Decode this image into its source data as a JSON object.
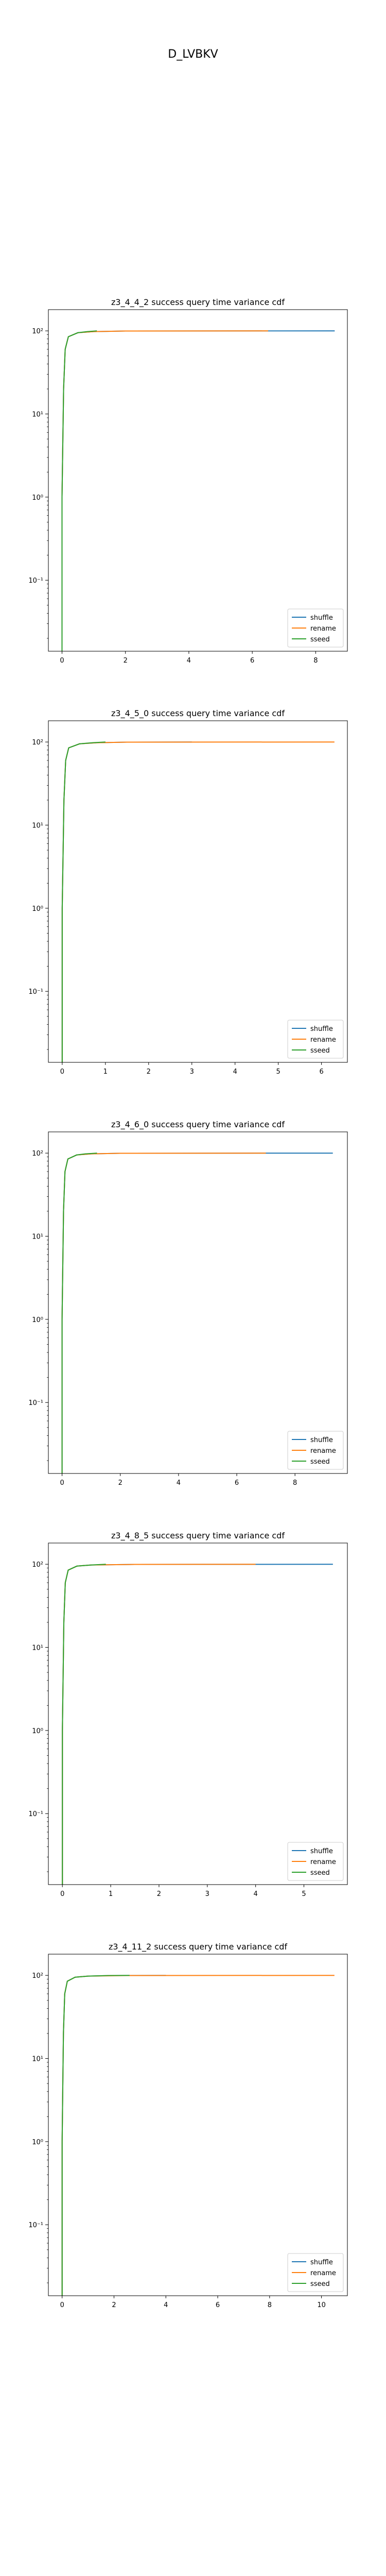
{
  "suptitle": "D_LVBKV",
  "colors": {
    "shuffle": "#1f77b4",
    "rename": "#ff7f0e",
    "sseed": "#2ca02c"
  },
  "chart_data": [
    {
      "type": "line",
      "title": "z3_4_4_2 success query time variance cdf",
      "xscale": "linear",
      "yscale": "log",
      "xlim": [
        -0.43,
        9.0
      ],
      "ylim": [
        0.014,
        180
      ],
      "xticks": [
        0,
        2,
        4,
        6,
        8
      ],
      "yticks": [
        {
          "value": 0.1,
          "label": "10⁻¹"
        },
        {
          "value": 1,
          "label": "10⁰"
        },
        {
          "value": 10,
          "label": "10¹"
        },
        {
          "value": 100,
          "label": "10²"
        }
      ],
      "legend": "lower-right",
      "series": [
        {
          "name": "shuffle",
          "color": "#1f77b4",
          "x": [
            0,
            0,
            0.05,
            0.1,
            0.2,
            0.5,
            1.0,
            2.0,
            8.6
          ],
          "y": [
            0.014,
            1,
            20,
            60,
            85,
            95,
            98,
            99.5,
            100
          ]
        },
        {
          "name": "rename",
          "color": "#ff7f0e",
          "x": [
            0,
            0,
            0.05,
            0.1,
            0.2,
            0.5,
            1.0,
            2.0,
            6.5
          ],
          "y": [
            0.014,
            1,
            20,
            60,
            85,
            95,
            98,
            99.5,
            100
          ]
        },
        {
          "name": "sseed",
          "color": "#2ca02c",
          "x": [
            0,
            0,
            0.05,
            0.1,
            0.2,
            0.5,
            0.8,
            1.1
          ],
          "y": [
            0.014,
            1,
            20,
            60,
            85,
            95,
            98,
            100
          ]
        }
      ]
    },
    {
      "type": "line",
      "title": "z3_4_5_0 success query time variance cdf",
      "xscale": "linear",
      "yscale": "log",
      "xlim": [
        -0.32,
        6.6
      ],
      "ylim": [
        0.014,
        180
      ],
      "xticks": [
        0,
        1,
        2,
        3,
        4,
        5,
        6
      ],
      "yticks": [
        {
          "value": 0.1,
          "label": "10⁻¹"
        },
        {
          "value": 1,
          "label": "10⁰"
        },
        {
          "value": 10,
          "label": "10¹"
        },
        {
          "value": 100,
          "label": "10²"
        }
      ],
      "legend": "lower-right",
      "series": [
        {
          "name": "shuffle",
          "color": "#1f77b4",
          "x": [
            0,
            0,
            0.04,
            0.08,
            0.15,
            0.4,
            0.8,
            1.5,
            3.0
          ],
          "y": [
            0.014,
            1,
            20,
            60,
            85,
            95,
            98,
            99.5,
            100
          ]
        },
        {
          "name": "rename",
          "color": "#ff7f0e",
          "x": [
            0,
            0,
            0.04,
            0.08,
            0.15,
            0.4,
            0.8,
            1.5,
            6.3
          ],
          "y": [
            0.014,
            1,
            20,
            60,
            85,
            95,
            98,
            99.5,
            100
          ]
        },
        {
          "name": "sseed",
          "color": "#2ca02c",
          "x": [
            0,
            0,
            0.04,
            0.08,
            0.15,
            0.4,
            0.7,
            1.0
          ],
          "y": [
            0.014,
            1,
            20,
            60,
            85,
            95,
            98,
            100
          ]
        }
      ]
    },
    {
      "type": "line",
      "title": "z3_4_6_0 success query time variance cdf",
      "xscale": "linear",
      "yscale": "log",
      "xlim": [
        -0.47,
        9.8
      ],
      "ylim": [
        0.014,
        180
      ],
      "xticks": [
        0,
        2,
        4,
        6,
        8
      ],
      "yticks": [
        {
          "value": 0.1,
          "label": "10⁻¹"
        },
        {
          "value": 1,
          "label": "10⁰"
        },
        {
          "value": 10,
          "label": "10¹"
        },
        {
          "value": 100,
          "label": "10²"
        }
      ],
      "legend": "lower-right",
      "series": [
        {
          "name": "shuffle",
          "color": "#1f77b4",
          "x": [
            0,
            0,
            0.05,
            0.1,
            0.2,
            0.5,
            1.0,
            2.0,
            9.3
          ],
          "y": [
            0.014,
            1,
            20,
            60,
            85,
            95,
            98,
            99.5,
            100
          ]
        },
        {
          "name": "rename",
          "color": "#ff7f0e",
          "x": [
            0,
            0,
            0.05,
            0.1,
            0.2,
            0.5,
            1.0,
            2.0,
            7.0
          ],
          "y": [
            0.014,
            1,
            20,
            60,
            85,
            95,
            98,
            99.5,
            100
          ]
        },
        {
          "name": "sseed",
          "color": "#2ca02c",
          "x": [
            0,
            0,
            0.05,
            0.1,
            0.2,
            0.5,
            0.8,
            1.2
          ],
          "y": [
            0.014,
            1,
            20,
            60,
            85,
            95,
            98,
            100
          ]
        }
      ]
    },
    {
      "type": "line",
      "title": "z3_4_8_5 success query time variance cdf",
      "xscale": "linear",
      "yscale": "log",
      "xlim": [
        -0.29,
        5.9
      ],
      "ylim": [
        0.014,
        180
      ],
      "xticks": [
        0,
        1,
        2,
        3,
        4,
        5
      ],
      "yticks": [
        {
          "value": 0.1,
          "label": "10⁻¹"
        },
        {
          "value": 1,
          "label": "10⁰"
        },
        {
          "value": 10,
          "label": "10¹"
        },
        {
          "value": 100,
          "label": "10²"
        }
      ],
      "legend": "lower-right",
      "series": [
        {
          "name": "shuffle",
          "color": "#1f77b4",
          "x": [
            0,
            0,
            0.03,
            0.06,
            0.12,
            0.3,
            0.6,
            1.5,
            5.6
          ],
          "y": [
            0.014,
            1,
            20,
            60,
            85,
            95,
            98,
            99.5,
            100
          ]
        },
        {
          "name": "rename",
          "color": "#ff7f0e",
          "x": [
            0,
            0,
            0.03,
            0.06,
            0.12,
            0.3,
            0.6,
            1.5,
            4.0
          ],
          "y": [
            0.014,
            1,
            20,
            60,
            85,
            95,
            98,
            99.5,
            100
          ]
        },
        {
          "name": "sseed",
          "color": "#2ca02c",
          "x": [
            0,
            0,
            0.03,
            0.06,
            0.12,
            0.3,
            0.6,
            0.9
          ],
          "y": [
            0.014,
            1,
            20,
            60,
            85,
            95,
            98,
            100
          ]
        }
      ]
    },
    {
      "type": "line",
      "title": "z3_4_11_2 success query time variance cdf",
      "xscale": "linear",
      "yscale": "log",
      "xlim": [
        -0.53,
        11.0
      ],
      "ylim": [
        0.014,
        180
      ],
      "xticks": [
        0,
        2,
        4,
        6,
        8,
        10
      ],
      "yticks": [
        {
          "value": 0.1,
          "label": "10⁻¹"
        },
        {
          "value": 1,
          "label": "10⁰"
        },
        {
          "value": 10,
          "label": "10¹"
        },
        {
          "value": 100,
          "label": "10²"
        }
      ],
      "legend": "lower-right",
      "series": [
        {
          "name": "shuffle",
          "color": "#1f77b4",
          "x": [
            0,
            0,
            0.05,
            0.1,
            0.2,
            0.5,
            1.0,
            2.0,
            4.0
          ],
          "y": [
            0.014,
            1,
            20,
            60,
            85,
            95,
            98,
            99.5,
            100
          ]
        },
        {
          "name": "rename",
          "color": "#ff7f0e",
          "x": [
            0,
            0,
            0.05,
            0.1,
            0.2,
            0.5,
            1.0,
            2.5,
            10.5
          ],
          "y": [
            0.014,
            1,
            20,
            60,
            85,
            95,
            98,
            99.5,
            100
          ]
        },
        {
          "name": "sseed",
          "color": "#2ca02c",
          "x": [
            0,
            0,
            0.05,
            0.1,
            0.2,
            0.5,
            1.0,
            1.8,
            2.6
          ],
          "y": [
            0.014,
            1,
            20,
            60,
            85,
            95,
            98,
            99.5,
            100
          ]
        }
      ]
    }
  ]
}
